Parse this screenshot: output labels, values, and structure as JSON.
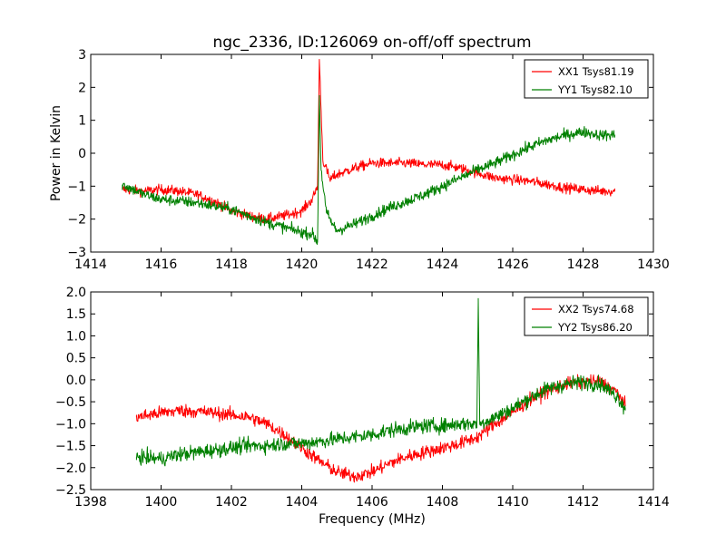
{
  "figure": {
    "title": "ngc_2336, ID:126069 on-off/off spectrum",
    "xlabel": "Frequency (MHz)",
    "ylabel": "Power in Kelvin"
  },
  "chart_data": [
    {
      "type": "line",
      "title": "ngc_2336, ID:126069 on-off/off spectrum",
      "xlabel": "",
      "ylabel": "Power in Kelvin",
      "xlim": [
        1414,
        1430
      ],
      "ylim": [
        -3,
        3
      ],
      "xticks": [
        "1414",
        "1416",
        "1418",
        "1420",
        "1422",
        "1424",
        "1426",
        "1428",
        "1430"
      ],
      "yticks": [
        "−3",
        "−2",
        "−1",
        "0",
        "1",
        "2",
        "3"
      ],
      "legend_position": "top-right",
      "grid": false,
      "series": [
        {
          "name": "XX1 Tsys81.19",
          "color": "#ff0000",
          "noise": 0.18,
          "x": [
            1414.9,
            1415.5,
            1416.0,
            1416.5,
            1417.0,
            1417.5,
            1418.0,
            1418.5,
            1419.0,
            1419.5,
            1420.0,
            1420.3,
            1420.45,
            1420.5,
            1420.6,
            1420.8,
            1421.0,
            1421.5,
            1422.0,
            1422.5,
            1423.0,
            1423.5,
            1424.0,
            1424.5,
            1425.0,
            1425.5,
            1426.0,
            1426.5,
            1427.0,
            1427.5,
            1428.0,
            1428.5,
            1428.9
          ],
          "y": [
            -1.1,
            -1.15,
            -1.1,
            -1.15,
            -1.25,
            -1.45,
            -1.75,
            -1.9,
            -2.0,
            -1.9,
            -1.75,
            -1.4,
            -1.0,
            2.85,
            -0.2,
            -0.8,
            -0.65,
            -0.45,
            -0.3,
            -0.3,
            -0.3,
            -0.35,
            -0.35,
            -0.45,
            -0.6,
            -0.75,
            -0.8,
            -0.85,
            -0.95,
            -1.05,
            -1.1,
            -1.15,
            -1.15
          ]
        },
        {
          "name": "YY1 Tsys82.10",
          "color": "#008000",
          "noise": 0.2,
          "x": [
            1414.9,
            1415.5,
            1416.0,
            1416.5,
            1417.0,
            1417.5,
            1418.0,
            1418.5,
            1419.0,
            1419.5,
            1420.0,
            1420.3,
            1420.45,
            1420.5,
            1420.55,
            1420.7,
            1420.9,
            1421.0,
            1421.5,
            1422.0,
            1422.5,
            1423.0,
            1423.5,
            1424.0,
            1424.5,
            1425.0,
            1425.5,
            1426.0,
            1426.5,
            1427.0,
            1427.5,
            1428.0,
            1428.5,
            1428.9
          ],
          "y": [
            -0.95,
            -1.25,
            -1.4,
            -1.45,
            -1.5,
            -1.6,
            -1.7,
            -1.9,
            -2.1,
            -2.25,
            -2.4,
            -2.45,
            -2.7,
            1.75,
            -0.5,
            -1.8,
            -2.2,
            -2.35,
            -2.15,
            -1.9,
            -1.65,
            -1.45,
            -1.25,
            -1.0,
            -0.75,
            -0.5,
            -0.3,
            -0.05,
            0.2,
            0.4,
            0.55,
            0.65,
            0.55,
            0.55
          ]
        }
      ]
    },
    {
      "type": "line",
      "title": "",
      "xlabel": "Frequency (MHz)",
      "ylabel": "",
      "xlim": [
        1398,
        1414
      ],
      "ylim": [
        -2.5,
        2.0
      ],
      "xticks": [
        "1398",
        "1400",
        "1402",
        "1404",
        "1406",
        "1408",
        "1410",
        "1412",
        "1414"
      ],
      "yticks": [
        "−2.5",
        "−2.0",
        "−1.5",
        "−1.0",
        "−0.5",
        "0.0",
        "0.5",
        "1.0",
        "1.5",
        "2.0"
      ],
      "legend_position": "top-right",
      "grid": false,
      "series": [
        {
          "name": "XX2 Tsys74.68",
          "color": "#ff0000",
          "noise": 0.18,
          "x": [
            1399.3,
            1400.0,
            1400.5,
            1401.0,
            1401.5,
            1402.0,
            1402.5,
            1403.0,
            1403.5,
            1404.0,
            1404.5,
            1405.0,
            1405.5,
            1406.0,
            1406.5,
            1407.0,
            1407.5,
            1408.0,
            1408.5,
            1409.0,
            1409.5,
            1410.0,
            1410.5,
            1411.0,
            1411.5,
            1412.0,
            1412.5,
            1413.0,
            1413.2
          ],
          "y": [
            -0.85,
            -0.75,
            -0.7,
            -0.72,
            -0.75,
            -0.8,
            -0.85,
            -1.0,
            -1.25,
            -1.55,
            -1.85,
            -2.1,
            -2.2,
            -2.1,
            -1.9,
            -1.75,
            -1.65,
            -1.55,
            -1.45,
            -1.3,
            -1.0,
            -0.75,
            -0.45,
            -0.25,
            -0.1,
            -0.05,
            -0.05,
            -0.3,
            -0.6
          ]
        },
        {
          "name": "YY2 Tsys86.20",
          "color": "#008000",
          "noise": 0.2,
          "x": [
            1399.3,
            1400.0,
            1400.5,
            1401.0,
            1401.5,
            1402.0,
            1402.5,
            1403.0,
            1403.5,
            1404.0,
            1404.5,
            1405.0,
            1405.5,
            1406.0,
            1406.5,
            1407.0,
            1407.5,
            1408.0,
            1408.5,
            1408.98,
            1409.02,
            1409.06,
            1409.5,
            1410.0,
            1410.5,
            1411.0,
            1411.5,
            1412.0,
            1412.5,
            1413.0,
            1413.2
          ],
          "y": [
            -1.75,
            -1.8,
            -1.7,
            -1.65,
            -1.6,
            -1.55,
            -1.5,
            -1.5,
            -1.45,
            -1.45,
            -1.4,
            -1.35,
            -1.3,
            -1.25,
            -1.15,
            -1.1,
            -1.05,
            -1.05,
            -1.0,
            -1.0,
            1.85,
            -1.0,
            -0.85,
            -0.65,
            -0.4,
            -0.2,
            -0.1,
            -0.05,
            -0.1,
            -0.4,
            -0.65
          ]
        }
      ]
    }
  ]
}
